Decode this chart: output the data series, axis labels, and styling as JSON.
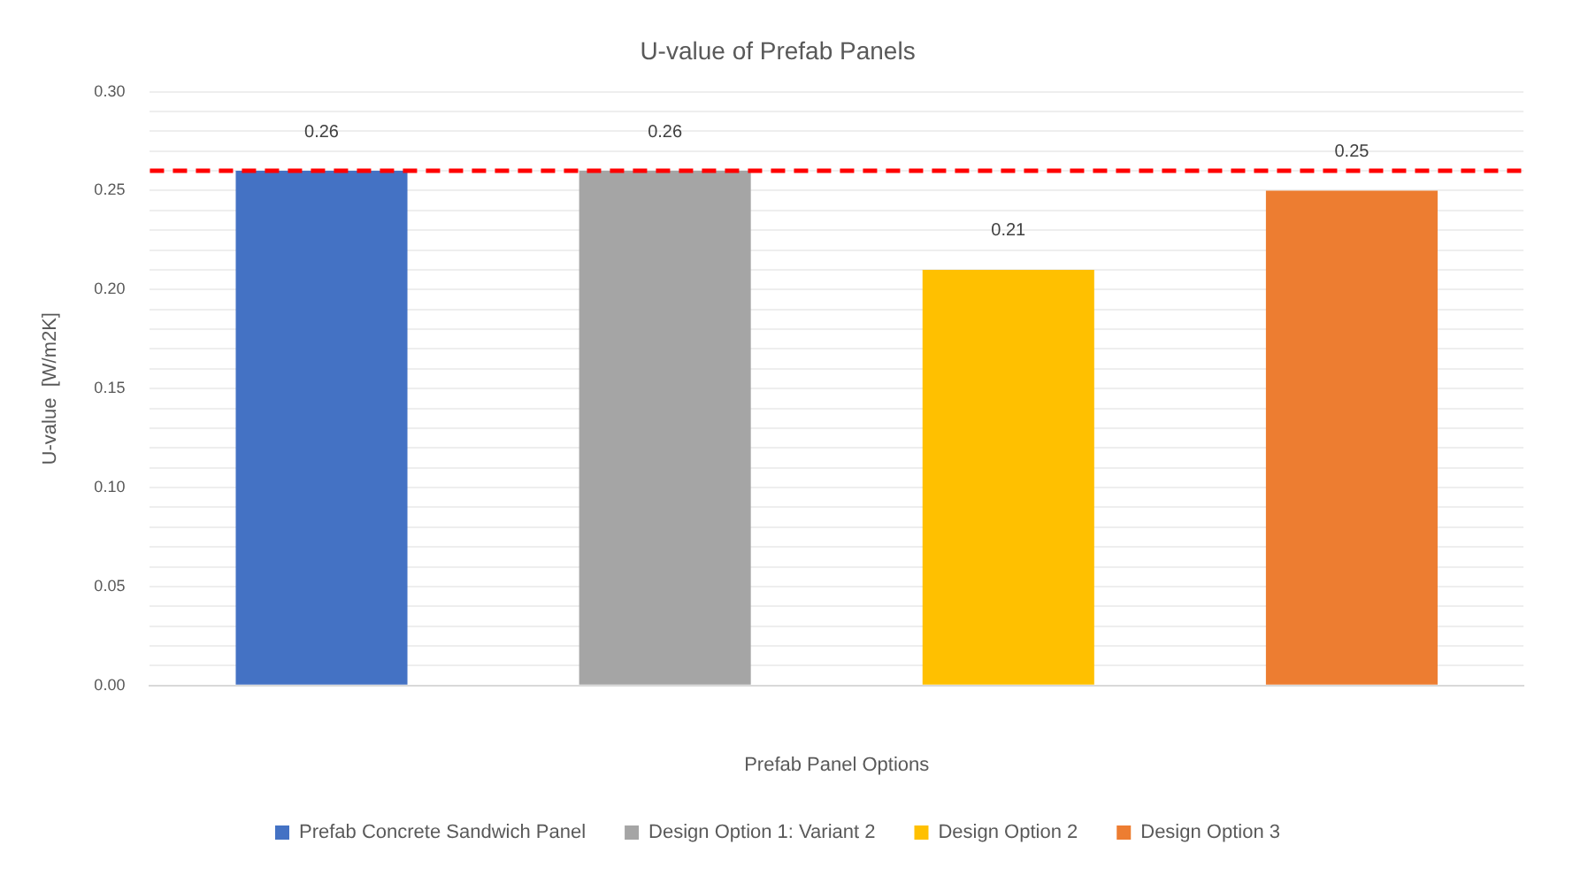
{
  "chart_data": {
    "type": "bar",
    "title": "U-value of Prefab Panels",
    "xlabel": "Prefab Panel Options",
    "ylabel": "U-value  [W/m2K]",
    "categories": [
      null
    ],
    "series": [
      {
        "name": "Prefab Concrete Sandwich Panel",
        "color": "#4472c4",
        "values": [
          0.26
        ]
      },
      {
        "name": "Design Option 1: Variant 2",
        "color": "#a5a5a5",
        "values": [
          0.26
        ]
      },
      {
        "name": "Design Option 2",
        "color": "#ffc000",
        "values": [
          0.21
        ]
      },
      {
        "name": "Design Option 3",
        "color": "#ed7d31",
        "values": [
          0.25
        ]
      }
    ],
    "ylim": [
      0,
      0.3
    ],
    "yticks": [
      {
        "value": 0,
        "label": "0.00"
      },
      {
        "value": 0.01,
        "label": null
      },
      {
        "value": 0.02,
        "label": null
      },
      {
        "value": 0.03,
        "label": null
      },
      {
        "value": 0.04,
        "label": null
      },
      {
        "value": 0.05,
        "label": "0.05"
      },
      {
        "value": 0.06,
        "label": null
      },
      {
        "value": 0.07,
        "label": null
      },
      {
        "value": 0.08,
        "label": null
      },
      {
        "value": 0.09,
        "label": null
      },
      {
        "value": 0.1,
        "label": "0.10"
      },
      {
        "value": 0.11,
        "label": null
      },
      {
        "value": 0.12,
        "label": null
      },
      {
        "value": 0.13,
        "label": null
      },
      {
        "value": 0.14,
        "label": null
      },
      {
        "value": 0.15,
        "label": "0.15"
      },
      {
        "value": 0.16,
        "label": null
      },
      {
        "value": 0.17,
        "label": null
      },
      {
        "value": 0.18,
        "label": null
      },
      {
        "value": 0.19,
        "label": null
      },
      {
        "value": 0.2,
        "label": "0.20"
      },
      {
        "value": 0.21,
        "label": null
      },
      {
        "value": 0.22,
        "label": null
      },
      {
        "value": 0.23,
        "label": null
      },
      {
        "value": 0.24,
        "label": null
      },
      {
        "value": 0.25,
        "label": "0.25"
      },
      {
        "value": 0.26,
        "label": null
      },
      {
        "value": 0.27,
        "label": null
      },
      {
        "value": 0.28,
        "label": null
      },
      {
        "value": 0.29,
        "label": null
      },
      {
        "value": 0.3,
        "label": "0.30"
      }
    ],
    "ref_lines": [
      {
        "axis": "y",
        "value": 0.26,
        "color": "#ff0000",
        "line_style": "dashed"
      }
    ],
    "data_labels": true,
    "grid": "y",
    "legend": "bottom"
  }
}
